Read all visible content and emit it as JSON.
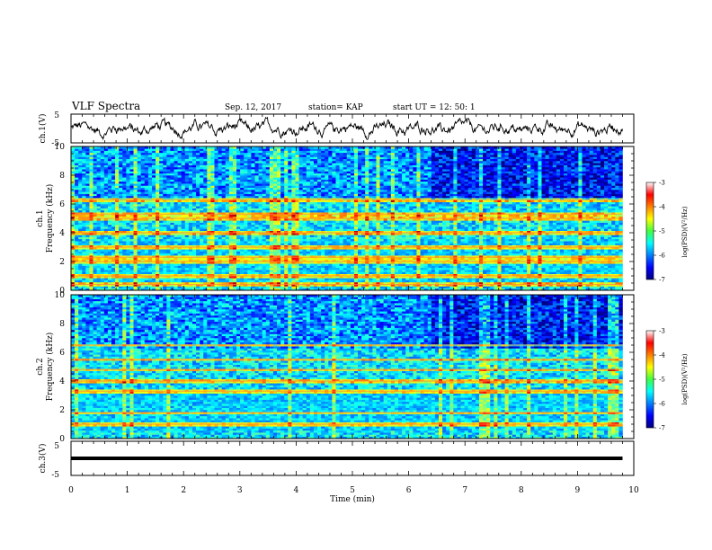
{
  "header": {
    "title": "VLF Spectra",
    "date": "Sep. 12, 2017",
    "station": "station= KAP",
    "start_time": "start  UT  =   12: 50: 1"
  },
  "chart_data": [
    {
      "id": "ch1-waveform",
      "type": "line",
      "ylabel": "ch.1(V)",
      "ylim": [
        -5,
        5
      ],
      "y_ticks": [
        "5",
        "-5"
      ],
      "xlim": [
        0,
        10
      ],
      "description_level": "noisy waveform around 0 V, amplitude about ±3 V"
    },
    {
      "id": "ch1-spectrogram",
      "type": "heatmap",
      "ylabel_top": "ch.1",
      "ylabel": "Frequency  (kHz)",
      "ylim": [
        0,
        10
      ],
      "y_ticks": [
        "0",
        "2",
        "4",
        "6",
        "8",
        "10"
      ],
      "xlim": [
        0,
        9.8
      ],
      "colorbar": {
        "label": "log(PSD)(V²/Hz)",
        "ticks": [
          "-3",
          "-4",
          "-5",
          "-6",
          "-7"
        ],
        "range": [
          -7,
          -3
        ]
      },
      "bands_khz": [
        0.4,
        1.0,
        2.0,
        2.3,
        3.0,
        4.0,
        5.0,
        5.3,
        6.3
      ],
      "step_change_min": 6.4
    },
    {
      "id": "ch2-spectrogram",
      "type": "heatmap",
      "ylabel_top": "ch.2",
      "ylabel": "Frequency  (kHz)",
      "ylim": [
        0,
        10
      ],
      "y_ticks": [
        "0",
        "2",
        "4",
        "6",
        "8",
        "10"
      ],
      "xlim": [
        0,
        9.8
      ],
      "colorbar": {
        "label": "log(PSD)(V²/Hz)",
        "ticks": [
          "-3",
          "-4",
          "-5",
          "-6",
          "-7"
        ],
        "range": [
          -7,
          -3
        ]
      },
      "bands_khz": [
        1.0,
        1.8,
        3.3,
        4.0,
        4.8,
        5.5,
        6.5
      ],
      "step_change_min": 6.4
    },
    {
      "id": "ch3-waveform",
      "type": "line",
      "ylabel": "ch.3(V)",
      "ylim": [
        -5,
        5
      ],
      "y_ticks": [
        "5",
        "-5"
      ],
      "xlim": [
        0,
        10
      ],
      "constant_value": 0
    }
  ],
  "x_axis": {
    "label": "Time  (min)",
    "ticks": [
      "0",
      "1",
      "2",
      "3",
      "4",
      "5",
      "6",
      "7",
      "8",
      "9",
      "10"
    ],
    "range": [
      0,
      10
    ]
  }
}
